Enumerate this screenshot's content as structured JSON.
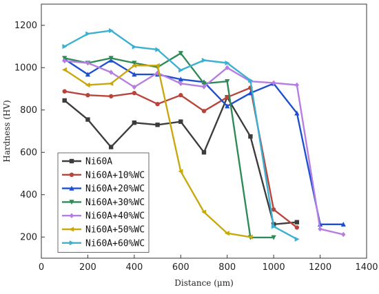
{
  "chart_data": {
    "type": "line",
    "title": "",
    "xlabel": "Distance (μm)",
    "ylabel": "Hardness (HV)",
    "xlim": [
      0,
      1400
    ],
    "ylim": [
      100,
      1300
    ],
    "xticks": [
      0,
      200,
      400,
      600,
      800,
      1000,
      1200,
      1400
    ],
    "yticks": [
      200,
      400,
      600,
      800,
      1000,
      1200
    ],
    "grid": false,
    "legend_position": "bottom-left",
    "series": [
      {
        "name": "Ni60A",
        "color": "#3c3c3c",
        "marker": "square",
        "x": [
          100,
          200,
          300,
          400,
          500,
          600,
          700,
          800,
          900,
          1000,
          1100
        ],
        "y": [
          845,
          755,
          625,
          740,
          730,
          745,
          600,
          860,
          675,
          260,
          270
        ]
      },
      {
        "name": "Ni60A+10%WC",
        "color": "#b8453b",
        "marker": "circle",
        "x": [
          100,
          200,
          300,
          400,
          500,
          600,
          700,
          800,
          900,
          1000,
          1100
        ],
        "y": [
          888,
          870,
          865,
          880,
          828,
          870,
          795,
          860,
          905,
          330,
          245
        ]
      },
      {
        "name": "Ni60A+20%WC",
        "color": "#1f4fd1",
        "marker": "triangle-up",
        "x": [
          100,
          200,
          300,
          400,
          500,
          600,
          700,
          800,
          900,
          1000,
          1100,
          1200,
          1300
        ],
        "y": [
          1040,
          968,
          1035,
          968,
          968,
          945,
          932,
          818,
          880,
          925,
          785,
          260,
          260
        ]
      },
      {
        "name": "Ni60A+30%WC",
        "color": "#2f8a57",
        "marker": "triangle-down",
        "x": [
          100,
          200,
          300,
          400,
          500,
          600,
          700,
          800,
          900,
          1000
        ],
        "y": [
          1045,
          1022,
          1045,
          1022,
          1002,
          1068,
          925,
          935,
          198,
          198
        ]
      },
      {
        "name": "Ni60A+40%WC",
        "color": "#b57ee0",
        "marker": "diamond",
        "x": [
          100,
          200,
          300,
          400,
          500,
          600,
          700,
          800,
          900,
          1000,
          1100,
          1200,
          1300
        ],
        "y": [
          1032,
          1022,
          978,
          908,
          975,
          925,
          910,
          1000,
          935,
          928,
          918,
          238,
          212
        ]
      },
      {
        "name": "Ni60A+50%WC",
        "color": "#c9a80d",
        "marker": "triangle-left",
        "x": [
          100,
          200,
          300,
          400,
          500,
          600,
          700,
          800,
          900
        ],
        "y": [
          990,
          918,
          925,
          1010,
          1010,
          510,
          318,
          218,
          200
        ]
      },
      {
        "name": "Ni60A+60%WC",
        "color": "#3cb0d0",
        "marker": "triangle-right",
        "x": [
          100,
          200,
          300,
          400,
          500,
          600,
          700,
          800,
          900,
          1000,
          1100
        ],
        "y": [
          1100,
          1160,
          1175,
          1098,
          1085,
          988,
          1035,
          1022,
          940,
          250,
          190
        ]
      }
    ]
  }
}
